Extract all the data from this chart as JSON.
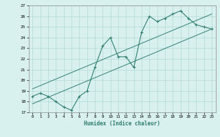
{
  "title": "",
  "xlabel": "Humidex (Indice chaleur)",
  "ylabel": "",
  "x_data": [
    0,
    1,
    2,
    3,
    4,
    5,
    6,
    7,
    8,
    9,
    10,
    11,
    12,
    13,
    14,
    15,
    16,
    17,
    18,
    19,
    20,
    21,
    22,
    23
  ],
  "y_data": [
    18.5,
    18.8,
    18.5,
    18.0,
    17.5,
    17.2,
    18.5,
    19.0,
    21.2,
    23.2,
    24.0,
    22.2,
    22.2,
    21.2,
    24.5,
    26.0,
    25.5,
    25.8,
    26.2,
    26.5,
    25.8,
    25.2,
    25.0,
    24.8
  ],
  "line1_x": [
    0,
    23
  ],
  "line1_y": [
    17.8,
    24.8
  ],
  "line2_x": [
    0,
    23
  ],
  "line2_y": [
    19.2,
    26.2
  ],
  "line_color": "#2e7d6e",
  "bg_color": "#d8f0ee",
  "grid_color": "#aad4cc",
  "xlim": [
    -0.5,
    23.5
  ],
  "ylim": [
    17,
    27
  ],
  "yticks": [
    17,
    18,
    19,
    20,
    21,
    22,
    23,
    24,
    25,
    26,
    27
  ],
  "xticks": [
    0,
    1,
    2,
    3,
    4,
    5,
    6,
    7,
    8,
    9,
    10,
    11,
    12,
    13,
    14,
    15,
    16,
    17,
    18,
    19,
    20,
    21,
    22,
    23
  ]
}
